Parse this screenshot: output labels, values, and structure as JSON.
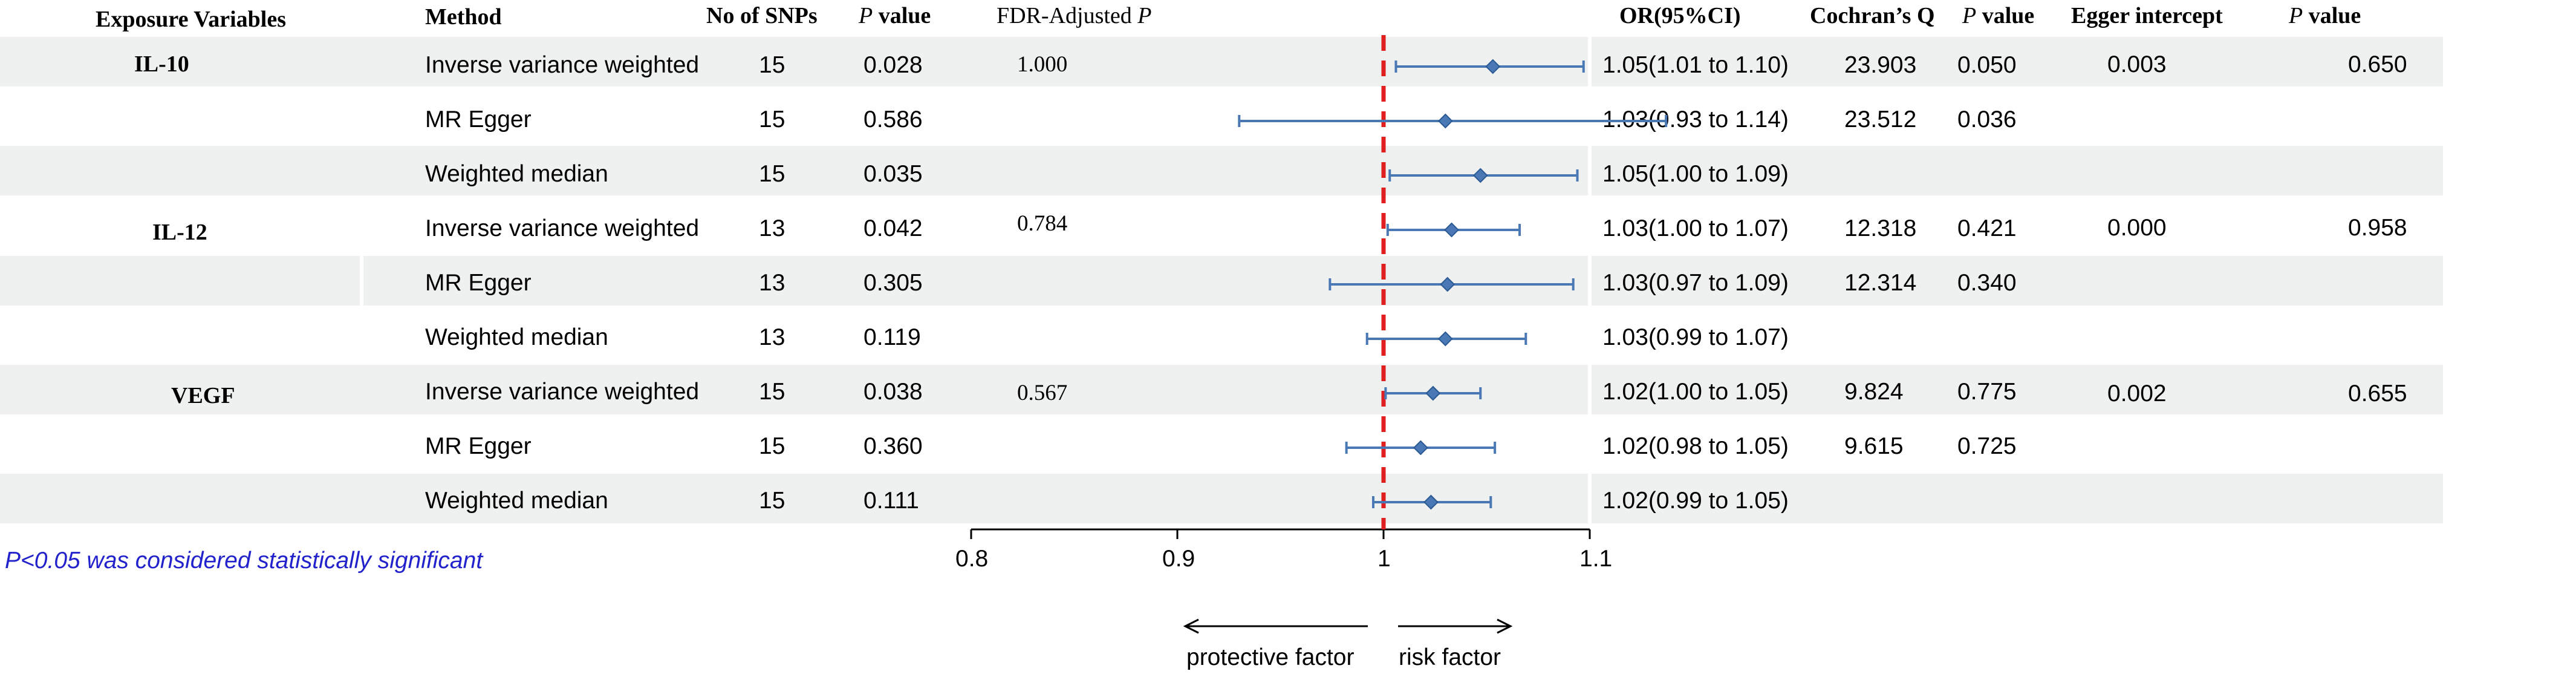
{
  "headers": {
    "exposure": "Exposure Variables",
    "method": "Method",
    "snps": "No of SNPs",
    "p_italic": "P",
    "p_suffix": " value",
    "fdr_prefix": "FDR-Adjusted ",
    "fdr_italic": "P",
    "or": "OR(95%CI)",
    "cochran": "Cochran’s Q",
    "p2_italic": "P",
    "p2_suffix": " value",
    "egger": "Egger intercept",
    "p3_italic": "P",
    "p3_suffix": " value"
  },
  "groups": [
    {
      "name": "IL-10",
      "fdr": "1.000",
      "egger_intercept": "0.003",
      "egger_p": "0.650"
    },
    {
      "name": "IL-12",
      "fdr": "0.784",
      "egger_intercept": "0.000",
      "egger_p": "0.958"
    },
    {
      "name": "VEGF",
      "fdr": "0.567",
      "egger_intercept": "0.002",
      "egger_p": "0.655"
    }
  ],
  "rows": [
    {
      "method": "Inverse variance weighted",
      "snps": "15",
      "p": "0.028",
      "or_text": "1.05(1.01 to 1.10)",
      "q": "23.903",
      "q_p": "0.050"
    },
    {
      "method": "MR Egger",
      "snps": "15",
      "p": "0.586",
      "or_text": "1.03(0.93 to 1.14)",
      "q": "23.512",
      "q_p": "0.036"
    },
    {
      "method": "Weighted median",
      "snps": "15",
      "p": "0.035",
      "or_text": "1.05(1.00 to 1.09)",
      "q": "",
      "q_p": ""
    },
    {
      "method": "Inverse variance weighted",
      "snps": "13",
      "p": "0.042",
      "or_text": "1.03(1.00 to 1.07)",
      "q": "12.318",
      "q_p": "0.421"
    },
    {
      "method": "MR Egger",
      "snps": "13",
      "p": "0.305",
      "or_text": "1.03(0.97 to 1.09)",
      "q": "12.314",
      "q_p": "0.340"
    },
    {
      "method": "Weighted median",
      "snps": "13",
      "p": "0.119",
      "or_text": "1.03(0.99 to 1.07)",
      "q": "",
      "q_p": ""
    },
    {
      "method": "Inverse variance weighted",
      "snps": "15",
      "p": "0.038",
      "or_text": "1.02(1.00 to 1.05)",
      "q": "9.824",
      "q_p": "0.775"
    },
    {
      "method": "MR Egger",
      "snps": "15",
      "p": "0.360",
      "or_text": "1.02(0.98 to 1.05)",
      "q": "9.615",
      "q_p": "0.725"
    },
    {
      "method": "Weighted median",
      "snps": "15",
      "p": "0.111",
      "or_text": "1.02(0.99 to 1.05)",
      "q": "",
      "q_p": ""
    }
  ],
  "chart_data": {
    "type": "scatter",
    "subtype": "forest-plot",
    "title": "",
    "xlabel": "",
    "xlim": [
      0.8,
      1.1
    ],
    "xticks": [
      "0.8",
      "0.9",
      "1",
      "1.1"
    ],
    "reference_line": 1.0,
    "series": [
      {
        "name": "IL-10 Inverse variance weighted",
        "or": 1.053,
        "lo": 1.006,
        "hi": 1.097
      },
      {
        "name": "IL-10 MR Egger",
        "or": 1.03,
        "lo": 0.93,
        "hi": 1.137
      },
      {
        "name": "IL-10 Weighted median",
        "or": 1.047,
        "lo": 1.003,
        "hi": 1.094
      },
      {
        "name": "IL-12 Inverse variance weighted",
        "or": 1.033,
        "lo": 1.002,
        "hi": 1.066
      },
      {
        "name": "IL-12 MR Egger",
        "or": 1.031,
        "lo": 0.974,
        "hi": 1.092
      },
      {
        "name": "IL-12 Weighted median",
        "or": 1.03,
        "lo": 0.992,
        "hi": 1.069
      },
      {
        "name": "VEGF Inverse variance weighted",
        "or": 1.024,
        "lo": 1.001,
        "hi": 1.047
      },
      {
        "name": "VEGF MR Egger",
        "or": 1.018,
        "lo": 0.982,
        "hi": 1.054
      },
      {
        "name": "VEGF Weighted median",
        "or": 1.023,
        "lo": 0.995,
        "hi": 1.052
      }
    ],
    "arrows": {
      "left": "protective factor",
      "right": "risk factor"
    }
  },
  "footnote": "P<0.05 was considered statistically significant",
  "colors": {
    "marker": "#4a78b5",
    "reference": "#e02020",
    "band": "#eef1f0",
    "note": "#2222cc"
  }
}
